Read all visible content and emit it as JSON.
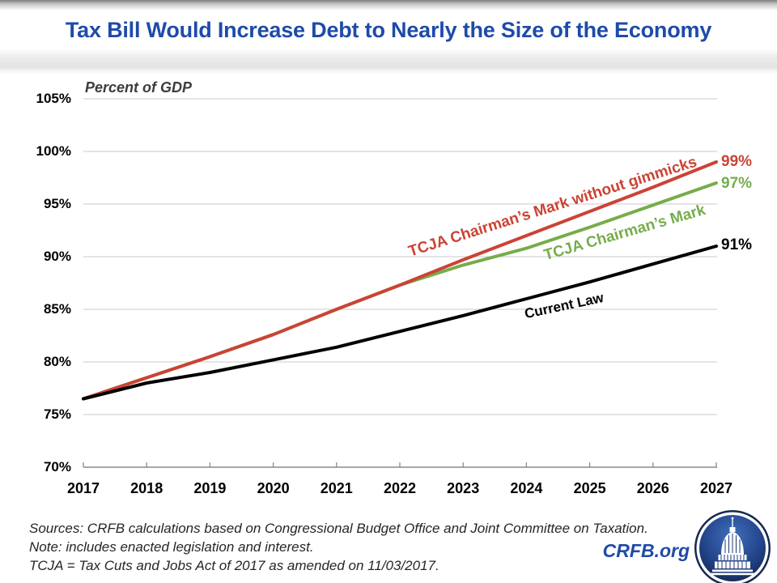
{
  "title": "Tax Bill Would Increase Debt to Nearly the Size of the Economy",
  "colors": {
    "title_blue": "#1e4ba9",
    "brand_blue": "#1e4ba9",
    "gridline": "#c9c9c9",
    "axis": "#8c8c8c",
    "footer_text": "#262626",
    "gdp_label": "#3d3d3d",
    "logo_navy": "#1b3a74"
  },
  "chart_data": {
    "type": "line",
    "title": "Tax Bill Would Increase Debt to Nearly the Size of the Economy",
    "ylabel": "Percent of GDP",
    "xlabel": "",
    "x": [
      2017,
      2018,
      2019,
      2020,
      2021,
      2022,
      2023,
      2024,
      2025,
      2026,
      2027
    ],
    "xticks": [
      "2017",
      "2018",
      "2019",
      "2020",
      "2021",
      "2022",
      "2023",
      "2024",
      "2025",
      "2026",
      "2027"
    ],
    "ylim": [
      70,
      105
    ],
    "yticks": [
      "105%",
      "100%",
      "95%",
      "90%",
      "85%",
      "80%",
      "75%",
      "70%"
    ],
    "grid": "horizontal",
    "legend": "inline-rotated-labels",
    "series": [
      {
        "name": "TCJA Chairman’s Mark without gimmicks",
        "color": "#cb4335",
        "end_label": "99%",
        "values": [
          76.5,
          78.5,
          80.5,
          82.6,
          85.0,
          87.3,
          89.7,
          92.0,
          94.3,
          96.6,
          99.0
        ]
      },
      {
        "name": "TCJA Chairman’s Mark",
        "color": "#76ad4b",
        "end_label": "97%",
        "values": [
          76.5,
          78.5,
          80.5,
          82.6,
          85.0,
          87.3,
          89.2,
          90.8,
          92.8,
          94.9,
          97.0
        ]
      },
      {
        "name": "Current Law",
        "color": "#000000",
        "end_label": "91%",
        "values": [
          76.5,
          78.0,
          79.0,
          80.2,
          81.4,
          82.9,
          84.4,
          86.0,
          87.6,
          89.3,
          91.0
        ]
      }
    ]
  },
  "footer": {
    "lines": [
      "Sources: CRFB calculations based on Congressional Budget Office and Joint Committee on Taxation.",
      "Note: includes enacted legislation and interest.",
      "TCJA = Tax Cuts and Jobs Act of 2017 as amended on 11/03/2017."
    ],
    "brand": "CRFB.org"
  },
  "logo": {
    "name": "crfb-capitol-logo"
  }
}
